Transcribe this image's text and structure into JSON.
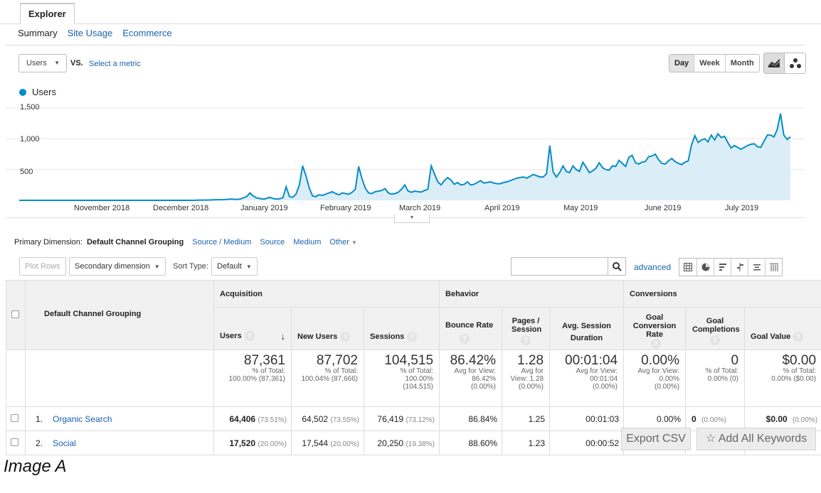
{
  "tabs": {
    "explorer": "Explorer"
  },
  "subtabs": [
    "Summary",
    "Site Usage",
    "Ecommerce"
  ],
  "controls": {
    "metric": "Users",
    "vs": "VS.",
    "select_metric": "Select a metric",
    "period": [
      "Day",
      "Week",
      "Month"
    ],
    "active_period": "Day"
  },
  "chart_data": {
    "type": "area",
    "legend": "Users",
    "y_ticks": [
      "1,500",
      "1,000",
      "500"
    ],
    "ylim": [
      0,
      1500
    ],
    "x_labels": [
      "November 2018",
      "December 2018",
      "January 2019",
      "February 2019",
      "March 2019",
      "April 2019",
      "May 2019",
      "June 2019",
      "July 2019"
    ],
    "series": [
      {
        "name": "Users",
        "values": [
          0,
          0,
          0,
          0,
          0,
          0,
          0,
          0,
          0,
          0,
          0,
          0,
          0,
          0,
          0,
          0,
          0,
          0,
          0,
          0,
          0,
          0,
          0,
          0,
          0,
          0,
          0,
          0,
          0,
          0,
          0,
          0,
          0,
          0,
          0,
          0,
          0,
          0,
          0,
          0,
          0,
          0,
          0,
          0,
          0,
          0,
          0,
          0,
          0,
          0,
          0,
          0,
          0,
          0,
          2,
          3,
          5,
          5,
          6,
          8,
          10,
          10,
          12,
          15,
          20,
          18,
          15,
          20,
          40,
          60,
          120,
          70,
          40,
          30,
          20,
          30,
          50,
          30,
          20,
          25,
          40,
          220,
          60,
          50,
          100,
          250,
          560,
          400,
          200,
          70,
          60,
          90,
          80,
          100,
          120,
          140,
          110,
          90,
          120,
          110,
          100,
          130,
          180,
          550,
          350,
          200,
          120,
          110,
          140,
          150,
          160,
          190,
          120,
          100,
          110,
          130,
          180,
          250,
          150,
          130,
          150,
          140,
          135,
          160,
          180,
          560,
          430,
          300,
          250,
          320,
          370,
          330,
          260,
          290,
          250,
          260,
          300,
          250,
          260,
          290,
          320,
          280,
          290,
          300,
          280,
          270,
          270,
          290,
          300,
          320,
          340,
          360,
          370,
          380,
          360,
          390,
          420,
          400,
          380,
          380,
          430,
          890,
          460,
          380,
          450,
          560,
          470,
          450,
          560,
          500,
          470,
          620,
          540,
          450,
          480,
          520,
          610,
          530,
          500,
          490,
          560,
          550,
          650,
          600,
          550,
          700,
          730,
          610,
          590,
          620,
          630,
          710,
          720,
          750,
          660,
          600,
          590,
          640,
          680,
          630,
          600,
          580,
          620,
          640,
          900,
          1050,
          940,
          980,
          1000,
          950,
          1060,
          980,
          1080,
          1020,
          1040,
          940,
          850,
          890,
          860,
          830,
          860,
          890,
          910,
          920,
          870,
          860,
          960,
          1060,
          1060,
          1030,
          1150,
          1410,
          1060,
          990,
          1030
        ]
      }
    ]
  },
  "dimensions": {
    "label": "Primary Dimension:",
    "current": "Default Channel Grouping",
    "links": [
      "Source / Medium",
      "Source",
      "Medium"
    ],
    "other": "Other"
  },
  "toolbar": {
    "plot_rows": "Plot Rows",
    "secondary_dimension": "Secondary dimension",
    "sort_type_label": "Sort Type:",
    "sort_type_value": "Default",
    "advanced": "advanced"
  },
  "table": {
    "dimension_header": "Default Channel Grouping",
    "groups": [
      "Acquisition",
      "Behavior",
      "Conversions"
    ],
    "columns": [
      "Users",
      "New Users",
      "Sessions",
      "Bounce Rate",
      "Pages / Session",
      "Avg. Session Duration",
      "Goal Conversion Rate",
      "Goal Completions",
      "Goal Value"
    ],
    "totals": [
      {
        "value": "87,361",
        "l1": "% of Total:",
        "l2": "100.00% (87,361)",
        "l3": ""
      },
      {
        "value": "87,702",
        "l1": "% of Total:",
        "l2": "100.04% (87,666)",
        "l3": ""
      },
      {
        "value": "104,515",
        "l1": "% of Total:",
        "l2": "100.00%",
        "l3": "(104,515)"
      },
      {
        "value": "86.42%",
        "l1": "Avg for View:",
        "l2": "86.42%",
        "l3": "(0.00%)"
      },
      {
        "value": "1.28",
        "l1": "Avg for",
        "l2": "View: 1.28",
        "l3": "(0.00%)"
      },
      {
        "value": "00:01:04",
        "l1": "Avg for View:",
        "l2": "00:01:04",
        "l3": "(0.00%)"
      },
      {
        "value": "0.00%",
        "l1": "Avg for View:",
        "l2": "0.00%",
        "l3": "(0.00%)"
      },
      {
        "value": "0",
        "l1": "% of Total:",
        "l2": "0.00% (0)",
        "l3": ""
      },
      {
        "value": "$0.00",
        "l1": "% of Total:",
        "l2": "0.00% ($0.00)",
        "l3": ""
      }
    ],
    "rows": [
      {
        "index": "1.",
        "name": "Organic Search",
        "users": "64,406",
        "users_pct": "(73.51%)",
        "new_users": "64,502",
        "new_users_pct": "(73.55%)",
        "sessions": "76,419",
        "sessions_pct": "(73.12%)",
        "bounce": "86.84%",
        "pages": "1.25",
        "duration": "00:01:03",
        "conv_rate": "0.00%",
        "completions": "0",
        "completions_pct": "(0.00%)",
        "goal_value": "$0.00",
        "goal_value_pct": "(0.00%)"
      },
      {
        "index": "2.",
        "name": "Social",
        "users": "17,520",
        "users_pct": "(20.00%)",
        "new_users": "17,544",
        "new_users_pct": "(20.00%)",
        "sessions": "20,250",
        "sessions_pct": "(19.38%)",
        "bounce": "88.60%",
        "pages": "1.23",
        "duration": "00:00:52",
        "conv_rate": "",
        "completions": "",
        "completions_pct": "",
        "goal_value": "",
        "goal_value_pct": ""
      }
    ]
  },
  "overlay": {
    "export_csv": "Export CSV",
    "add_keywords": "Add All Keywords"
  },
  "caption": "Image A",
  "colors": {
    "accent": "#058dc7",
    "link": "#1a62b0",
    "area_fill": "#dbeef8"
  }
}
